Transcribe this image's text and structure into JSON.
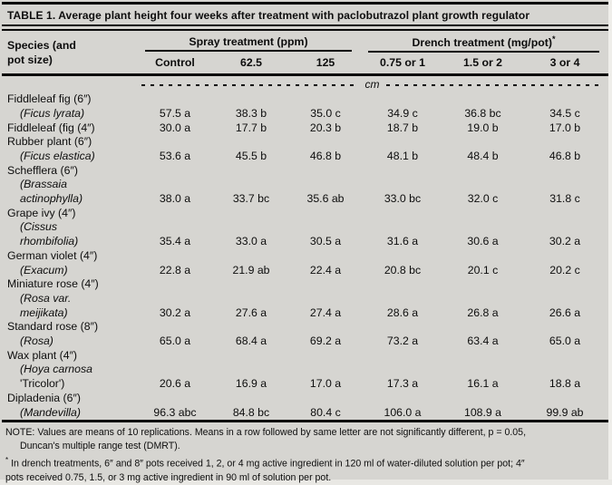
{
  "title": "TABLE 1. Average plant height four weeks after treatment with paclobutrazol plant growth regulator",
  "header": {
    "species_label": [
      "Species (and",
      "pot size)"
    ],
    "groups": [
      {
        "label": "Spray treatment (ppm)",
        "footnote_marker": ""
      },
      {
        "label": "Drench treatment (mg/pot)",
        "footnote_marker": "*"
      }
    ],
    "columns": [
      "Control",
      "62.5",
      "125",
      "0.75 or 1",
      "1.5 or 2",
      "3 or 4"
    ],
    "units_label": "cm"
  },
  "table": {
    "rows": [
      {
        "name_lines": [
          {
            "text": "Fiddleleaf fig (6″)"
          },
          {
            "text": "(Ficus lyrata)"
          }
        ],
        "values": [
          "57.5 a",
          "38.3 b",
          "35.0 c",
          "34.9 c",
          "36.8 bc",
          "34.5 c"
        ]
      },
      {
        "name_lines": [
          {
            "text": "Fiddleleaf (fig (4″)"
          }
        ],
        "values": [
          "30.0 a",
          "17.7 b",
          "20.3 b",
          "18.7 b",
          "19.0 b",
          "17.0 b"
        ]
      },
      {
        "name_lines": [
          {
            "text": "Rubber plant (6″)"
          },
          {
            "text": "(Ficus elastica)"
          }
        ],
        "values": [
          "53.6 a",
          "45.5 b",
          "46.8 b",
          "48.1 b",
          "48.4 b",
          "46.8 b"
        ]
      },
      {
        "name_lines": [
          {
            "text": "Schefflera (6″)"
          },
          {
            "text": "(Brassaia"
          },
          {
            "text": "actinophylla)"
          }
        ],
        "values": [
          "38.0 a",
          "33.7 bc",
          "35.6 ab",
          "33.0 bc",
          "32.0 c",
          "31.8 c"
        ]
      },
      {
        "name_lines": [
          {
            "text": "Grape ivy (4″)"
          },
          {
            "text": "(Cissus"
          },
          {
            "text": "rhombifolia)"
          }
        ],
        "values": [
          "35.4 a",
          "33.0 a",
          "30.5 a",
          "31.6 a",
          "30.6 a",
          "30.2 a"
        ]
      },
      {
        "name_lines": [
          {
            "text": "German violet (4″)"
          },
          {
            "text": "(Exacum)"
          }
        ],
        "values": [
          "22.8 a",
          "21.9 ab",
          "22.4 a",
          "20.8 bc",
          "20.1 c",
          "20.2 c"
        ]
      },
      {
        "name_lines": [
          {
            "text": "Miniature rose (4″)"
          },
          {
            "text": "(Rosa var."
          },
          {
            "text": "meijikata)"
          }
        ],
        "values": [
          "30.2 a",
          "27.6 a",
          "27.4 a",
          "28.6 a",
          "26.8 a",
          "26.6 a"
        ]
      },
      {
        "name_lines": [
          {
            "text": "Standard rose (8″)"
          },
          {
            "text": "(Rosa)"
          }
        ],
        "values": [
          "65.0 a",
          "68.4 a",
          "69.2 a",
          "73.2 a",
          "63.4 a",
          "65.0 a"
        ]
      },
      {
        "name_lines": [
          {
            "text": "Wax plant (4″)"
          },
          {
            "text": "(Hoya carnosa"
          },
          {
            "text": "'Tricolor')"
          }
        ],
        "values": [
          "20.6 a",
          "16.9 a",
          "17.0 a",
          "17.3 a",
          "16.1 a",
          "18.8 a"
        ]
      },
      {
        "name_lines": [
          {
            "text": "Dipladenia (6″)"
          },
          {
            "text": "(Mandevilla)"
          }
        ],
        "values": [
          "96.3 abc",
          "84.8 bc",
          "80.4 c",
          "106.0 a",
          "108.9 a",
          "99.9 ab"
        ]
      }
    ]
  },
  "notes": {
    "line1": "NOTE: Values are means of 10 replications. Means in a row followed by same letter are not significantly different, p = 0.05,",
    "line2": "Duncan's multiple range test (DMRT).",
    "footnote_marker": "*",
    "line3": "In drench treatments, 6″ and 8″ pots received 1, 2, or 4 mg active ingredient in 120 ml of water-diluted solution per pot; 4″",
    "line4": "pots received 0.75, 1.5, or 3 mg active ingredient in 90 ml of solution per pot."
  },
  "colors": {
    "paper": "#d6d5d1",
    "ink": "#0d0d0d"
  }
}
